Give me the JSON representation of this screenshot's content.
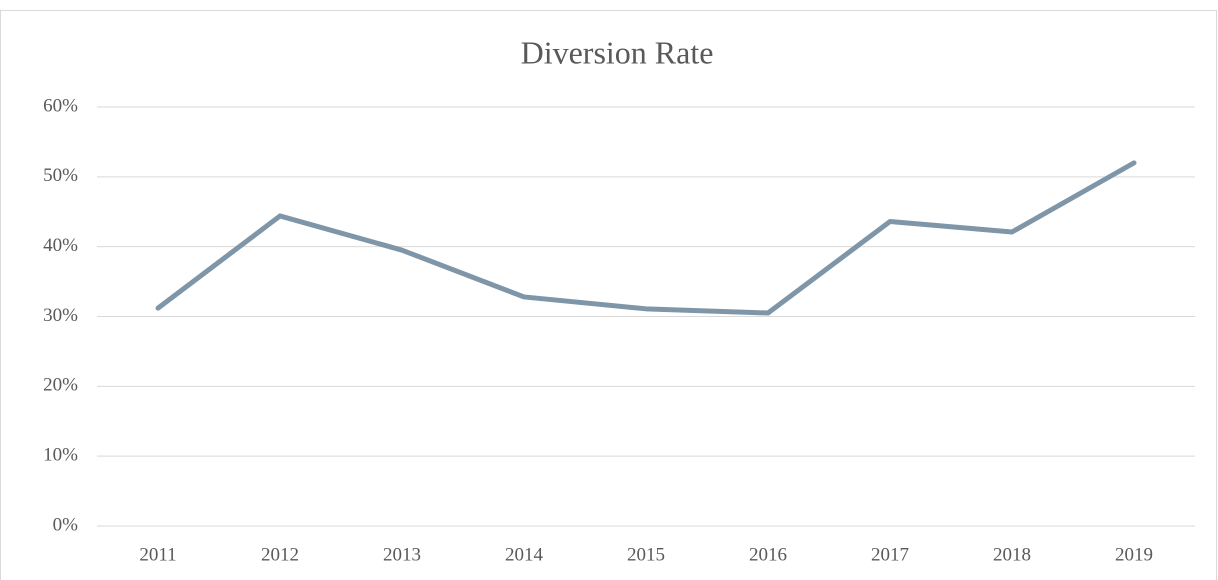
{
  "chart_data": {
    "type": "line",
    "title": "Diversion Rate",
    "categories": [
      "2011",
      "2012",
      "2013",
      "2014",
      "2015",
      "2016",
      "2017",
      "2018",
      "2019"
    ],
    "values": [
      31.2,
      44.4,
      39.5,
      32.8,
      31.1,
      30.5,
      43.6,
      42.1,
      52.0
    ],
    "color": "#7f96a8",
    "ylim": [
      0,
      60
    ],
    "yticks": [
      {
        "value": 0,
        "label": "0%"
      },
      {
        "value": 10,
        "label": "10%"
      },
      {
        "value": 20,
        "label": "20%"
      },
      {
        "value": 30,
        "label": "30%"
      },
      {
        "value": 40,
        "label": "40%"
      },
      {
        "value": 50,
        "label": "50%"
      },
      {
        "value": 60,
        "label": "60%"
      }
    ],
    "grid": true
  }
}
